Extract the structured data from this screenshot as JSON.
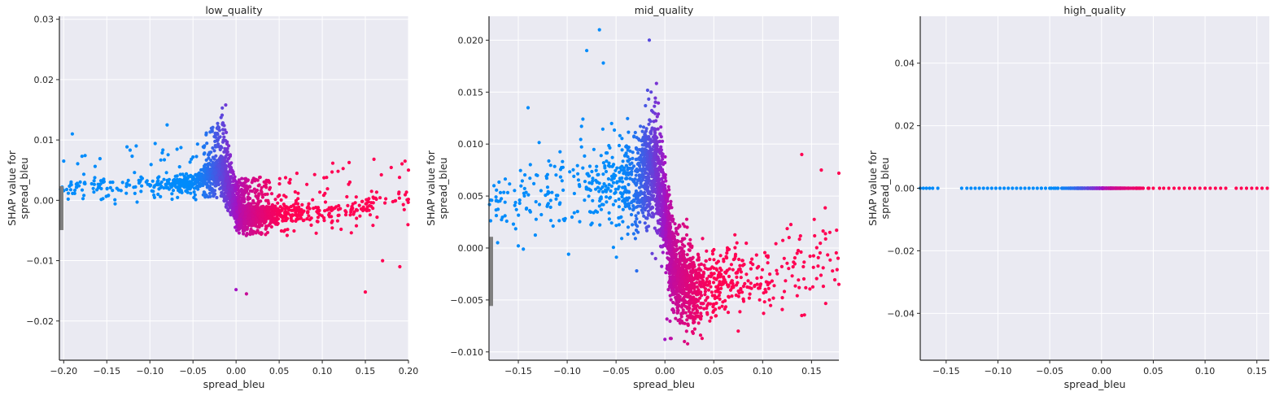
{
  "chart_data": [
    {
      "type": "scatter",
      "title": "low_quality",
      "xlabel": "spread_bleu",
      "ylabel_lines": [
        "SHAP value for",
        "spread_bleu"
      ],
      "xlim": [
        -0.205,
        0.2
      ],
      "ylim": [
        -0.0265,
        0.0305
      ],
      "xticks": [
        -0.2,
        -0.15,
        -0.1,
        -0.05,
        0.0,
        0.05,
        0.1,
        0.15,
        0.2
      ],
      "xtick_labels": [
        "-0.20",
        "-0.15",
        "-0.10",
        "-0.05",
        "0.00",
        "0.05",
        "0.10",
        "0.15",
        "0.20"
      ],
      "yticks": [
        -0.02,
        -0.01,
        0.0,
        0.01,
        0.02,
        0.03
      ],
      "ytick_labels": [
        "-0.02",
        "-0.01",
        "0.00",
        "0.01",
        "0.02",
        "0.03"
      ],
      "grid": true,
      "color_by": "x value (blue to magenta to red)",
      "colors": {
        "low": "#008bfb",
        "mid": "#a313c4",
        "high": "#ff0052"
      },
      "trend": [
        [
          -0.2,
          0.0022
        ],
        [
          -0.15,
          0.0024
        ],
        [
          -0.1,
          0.0026
        ],
        [
          -0.05,
          0.003
        ],
        [
          -0.03,
          0.0045
        ],
        [
          -0.015,
          0.005
        ],
        [
          -0.008,
          0.0015
        ],
        [
          0.0,
          -0.002
        ],
        [
          0.01,
          -0.0025
        ],
        [
          0.05,
          -0.0022
        ],
        [
          0.1,
          -0.0018
        ],
        [
          0.15,
          -0.0012
        ],
        [
          0.16,
          0.0
        ],
        [
          0.2,
          0.0
        ]
      ],
      "spread": [
        [
          -0.2,
          0.0035
        ],
        [
          -0.1,
          0.0045
        ],
        [
          -0.05,
          0.0035
        ],
        [
          -0.015,
          0.006
        ],
        [
          -0.005,
          0.004
        ],
        [
          0.0,
          0.004
        ],
        [
          0.03,
          0.004
        ],
        [
          0.1,
          0.005
        ],
        [
          0.2,
          0.005
        ]
      ],
      "highlight_points": [
        {
          "x": -0.012,
          "y": 0.0158
        },
        {
          "x": -0.016,
          "y": 0.0153
        },
        {
          "x": 0.0,
          "y": -0.0148
        },
        {
          "x": 0.012,
          "y": -0.0155
        },
        {
          "x": 0.16,
          "y": 0.0068
        },
        {
          "x": 0.2,
          "y": 0.005
        },
        {
          "x": -0.19,
          "y": 0.011
        },
        {
          "x": -0.08,
          "y": 0.0125
        },
        {
          "x": 0.15,
          "y": -0.0152
        },
        {
          "x": 0.17,
          "y": -0.01
        },
        {
          "x": 0.19,
          "y": -0.011
        },
        {
          "x": -0.2,
          "y": 0.0065
        }
      ],
      "hist_marks": [
        {
          "y": 0.0022,
          "width": 0.004
        },
        {
          "y": 0.0002,
          "width": 0.004
        },
        {
          "y": -0.0018,
          "width": 0.004
        },
        {
          "y": -0.0035,
          "width": 0.004
        },
        {
          "y": -0.0048,
          "width": 0.004
        }
      ]
    },
    {
      "type": "scatter",
      "title": "mid_quality",
      "xlabel": "spread_bleu",
      "ylabel_lines": [
        "SHAP value for",
        "spread_bleu"
      ],
      "xlim": [
        -0.18,
        0.178
      ],
      "ylim": [
        -0.0108,
        0.0223
      ],
      "xticks": [
        -0.15,
        -0.1,
        -0.05,
        0.0,
        0.05,
        0.1,
        0.15
      ],
      "xtick_labels": [
        "-0.15",
        "-0.10",
        "-0.05",
        "0.00",
        "0.05",
        "0.10",
        "0.15"
      ],
      "yticks": [
        -0.01,
        -0.005,
        0.0,
        0.005,
        0.01,
        0.015,
        0.02
      ],
      "ytick_labels": [
        "-0.010",
        "-0.005",
        "0.000",
        "0.005",
        "0.010",
        "0.015",
        "0.020"
      ],
      "grid": true,
      "color_by": "x value (blue to magenta to red)",
      "colors": {
        "low": "#008bfb",
        "mid": "#a313c4",
        "high": "#ff0052"
      },
      "trend": [
        [
          -0.18,
          0.004
        ],
        [
          -0.15,
          0.0045
        ],
        [
          -0.1,
          0.006
        ],
        [
          -0.06,
          0.0065
        ],
        [
          -0.03,
          0.0065
        ],
        [
          -0.01,
          0.008
        ],
        [
          0.0,
          0.004
        ],
        [
          0.005,
          0.0
        ],
        [
          0.01,
          -0.0025
        ],
        [
          0.03,
          -0.0038
        ],
        [
          0.07,
          -0.003
        ],
        [
          0.1,
          -0.0028
        ],
        [
          0.15,
          -0.0015
        ],
        [
          0.178,
          0.0
        ]
      ],
      "spread": [
        [
          -0.18,
          0.003
        ],
        [
          -0.1,
          0.0045
        ],
        [
          -0.05,
          0.004
        ],
        [
          -0.01,
          0.005
        ],
        [
          0.005,
          0.004
        ],
        [
          0.03,
          0.0035
        ],
        [
          0.08,
          0.003
        ],
        [
          0.15,
          0.004
        ],
        [
          0.178,
          0.004
        ]
      ],
      "highlight_points": [
        {
          "x": -0.067,
          "y": 0.021
        },
        {
          "x": -0.016,
          "y": 0.02
        },
        {
          "x": -0.08,
          "y": 0.019
        },
        {
          "x": -0.063,
          "y": 0.0178
        },
        {
          "x": -0.14,
          "y": 0.0135
        },
        {
          "x": 0.14,
          "y": 0.009
        },
        {
          "x": 0.16,
          "y": 0.0075
        },
        {
          "x": 0.178,
          "y": 0.0072
        },
        {
          "x": 0.02,
          "y": -0.009
        },
        {
          "x": 0.0,
          "y": -0.0088
        },
        {
          "x": 0.075,
          "y": -0.008
        },
        {
          "x": 0.14,
          "y": -0.0065
        },
        {
          "x": -0.15,
          "y": 0.0002
        },
        {
          "x": 0.178,
          "y": -0.0035
        }
      ],
      "hist_marks": [
        {
          "y": 0.001,
          "width": 0.004
        },
        {
          "y": 0.0,
          "width": 0.004
        },
        {
          "y": -0.001,
          "width": 0.004
        },
        {
          "y": -0.002,
          "width": 0.004
        },
        {
          "y": -0.003,
          "width": 0.004
        },
        {
          "y": -0.004,
          "width": 0.004
        },
        {
          "y": -0.005,
          "width": 0.004
        },
        {
          "y": -0.0055,
          "width": 0.004
        }
      ]
    },
    {
      "type": "scatter",
      "title": "high_quality",
      "xlabel": "spread_bleu",
      "ylabel_lines": [
        "SHAP value for",
        "spread_bleu"
      ],
      "xlim": [
        -0.175,
        0.162
      ],
      "ylim": [
        -0.055,
        0.055
      ],
      "xticks": [
        -0.15,
        -0.1,
        -0.05,
        0.0,
        0.05,
        0.1,
        0.15
      ],
      "xtick_labels": [
        "-0.15",
        "-0.10",
        "-0.05",
        "0.00",
        "0.05",
        "0.10",
        "0.15"
      ],
      "yticks": [
        -0.04,
        -0.02,
        0.0,
        0.02,
        0.04
      ],
      "ytick_labels": [
        "-0.04",
        "-0.02",
        "0.00",
        "0.02",
        "0.04"
      ],
      "grid": true,
      "color_by": "x value (blue to magenta to red)",
      "colors": {
        "low": "#008bfb",
        "mid": "#a313c4",
        "high": "#ff0052"
      },
      "points_at_zero_x": [
        -0.175,
        -0.172,
        -0.169,
        -0.166,
        -0.163,
        -0.158,
        -0.135,
        -0.13,
        -0.126,
        -0.122,
        -0.118,
        -0.114,
        -0.11,
        -0.106,
        -0.102,
        -0.098,
        -0.094,
        -0.09,
        -0.086,
        -0.082,
        -0.078,
        -0.074,
        -0.07,
        -0.066,
        -0.062,
        -0.058,
        -0.054,
        -0.05,
        -0.046,
        -0.042,
        -0.038,
        -0.034,
        -0.03,
        -0.026,
        -0.022,
        -0.018,
        -0.014,
        -0.01,
        -0.006,
        -0.002,
        0.002,
        0.006,
        0.01,
        0.014,
        0.018,
        0.022,
        0.026,
        0.03,
        0.034,
        0.038,
        0.045,
        0.05,
        0.056,
        0.06,
        0.065,
        0.07,
        0.075,
        0.08,
        0.085,
        0.09,
        0.095,
        0.1,
        0.105,
        0.11,
        0.115,
        0.12,
        0.13,
        0.135,
        0.14,
        0.145,
        0.15,
        0.155,
        0.16
      ]
    }
  ]
}
